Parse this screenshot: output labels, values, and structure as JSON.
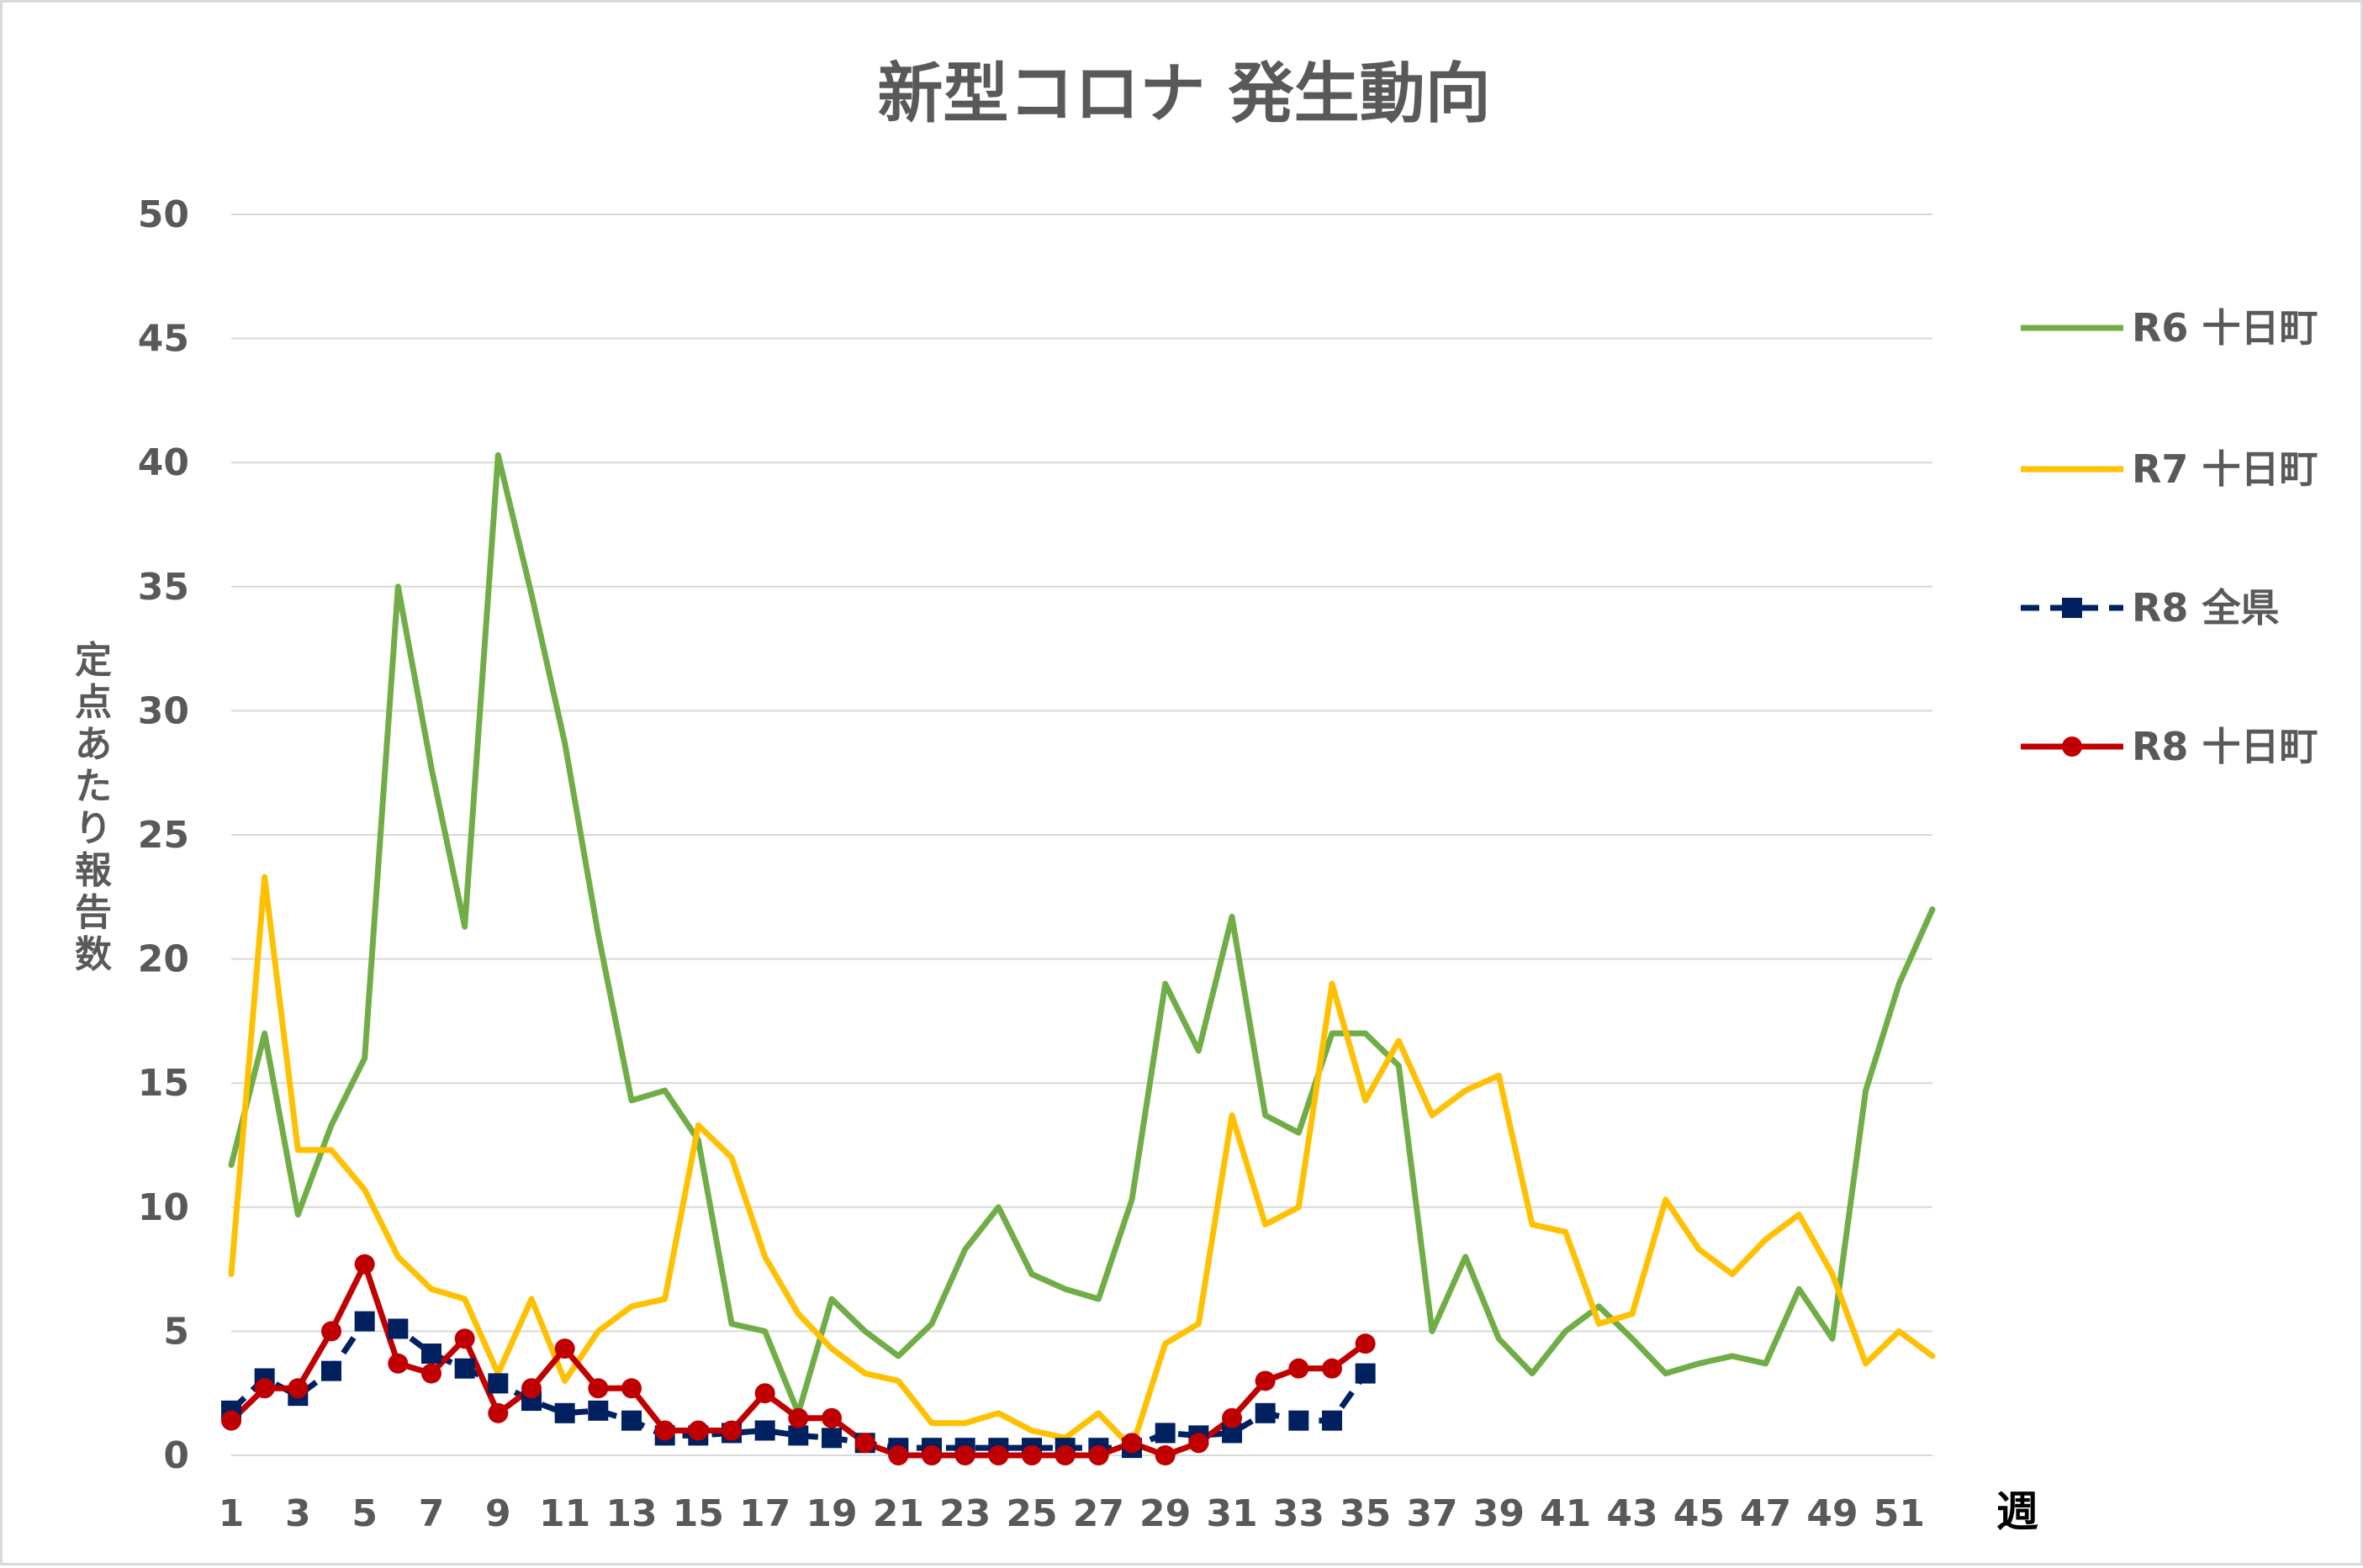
{
  "chart_data": {
    "type": "line",
    "title": "新型コロナ 発生動向",
    "ylabel": "定点あたり報告数",
    "xlabel": "週",
    "ylim": [
      0,
      50
    ],
    "yticks": [
      0,
      5,
      10,
      15,
      20,
      25,
      30,
      35,
      40,
      45,
      50
    ],
    "xlim": [
      1,
      52
    ],
    "xticks": [
      1,
      3,
      5,
      7,
      9,
      11,
      13,
      15,
      17,
      19,
      21,
      23,
      25,
      27,
      29,
      31,
      33,
      35,
      37,
      39,
      41,
      43,
      45,
      47,
      49,
      51
    ],
    "grid": "horizontal",
    "legend_position": "right",
    "series": [
      {
        "name": "R6 十日町",
        "color": "#70ad47",
        "style": "solid",
        "marker": "none",
        "x": [
          1,
          2,
          3,
          4,
          5,
          6,
          7,
          8,
          9,
          10,
          11,
          12,
          13,
          14,
          15,
          16,
          17,
          18,
          19,
          20,
          21,
          22,
          23,
          24,
          25,
          26,
          27,
          28,
          29,
          30,
          31,
          32,
          33,
          34,
          35,
          36,
          37,
          38,
          39,
          40,
          41,
          42,
          43,
          44,
          45,
          46,
          47,
          48,
          49,
          50,
          51,
          52
        ],
        "values": [
          11.7,
          17,
          9.7,
          13.3,
          16,
          35,
          27.7,
          21.3,
          40.3,
          34.7,
          28.7,
          21,
          14.3,
          14.7,
          12.7,
          5.3,
          5,
          1.7,
          6.3,
          5,
          4,
          5.3,
          8.3,
          10,
          7.3,
          6.7,
          6.3,
          10.3,
          19,
          16.3,
          21.7,
          13.7,
          13,
          17,
          17,
          15.7,
          5,
          8,
          4.7,
          3.3,
          5,
          6,
          4.7,
          3.3,
          3.7,
          4,
          3.7,
          6.7,
          4.7,
          14.7,
          19,
          22
        ]
      },
      {
        "name": "R7 十日町",
        "color": "#ffc000",
        "style": "solid",
        "marker": "none",
        "x": [
          1,
          2,
          3,
          4,
          5,
          6,
          7,
          8,
          9,
          10,
          11,
          12,
          13,
          14,
          15,
          16,
          17,
          18,
          19,
          20,
          21,
          22,
          23,
          24,
          25,
          26,
          27,
          28,
          29,
          30,
          31,
          32,
          33,
          34,
          35,
          36,
          37,
          38,
          39,
          40,
          41,
          42,
          43,
          44,
          45,
          46,
          47,
          48,
          49,
          50,
          51,
          52
        ],
        "values": [
          7.3,
          23.3,
          12.3,
          12.3,
          10.7,
          8,
          6.7,
          6.3,
          3.3,
          6.3,
          3,
          5,
          6,
          6.3,
          13.3,
          12,
          8,
          5.7,
          4.3,
          3.3,
          3,
          1.3,
          1.3,
          1.7,
          1,
          0.7,
          1.7,
          0.3,
          4.5,
          5.3,
          13.7,
          9.3,
          10,
          19,
          14.3,
          16.7,
          13.7,
          14.7,
          15.3,
          9.3,
          9,
          5.3,
          5.7,
          10.3,
          8.3,
          7.3,
          8.7,
          9.7,
          7.3,
          3.7,
          5,
          4
        ]
      },
      {
        "name": "R8 全県",
        "color": "#002060",
        "style": "dashed",
        "marker": "square",
        "x": [
          1,
          2,
          3,
          4,
          5,
          6,
          7,
          8,
          9,
          10,
          11,
          12,
          13,
          14,
          15,
          16,
          17,
          18,
          19,
          20,
          21,
          22,
          23,
          24,
          25,
          26,
          27,
          28,
          29,
          30,
          31,
          32,
          33,
          34,
          35
        ],
        "values": [
          1.8,
          3.1,
          2.4,
          3.4,
          5.4,
          5.1,
          4.1,
          3.5,
          2.9,
          2.2,
          1.7,
          1.8,
          1.4,
          0.8,
          0.8,
          0.9,
          1,
          0.8,
          0.7,
          0.5,
          0.3,
          0.3,
          0.3,
          0.3,
          0.3,
          0.3,
          0.3,
          0.3,
          0.9,
          0.8,
          0.9,
          1.7,
          1.4,
          1.4,
          3.3
        ]
      },
      {
        "name": "R8 十日町",
        "color": "#c00000",
        "style": "solid",
        "marker": "circle",
        "x": [
          1,
          2,
          3,
          4,
          5,
          6,
          7,
          8,
          9,
          10,
          11,
          12,
          13,
          14,
          15,
          16,
          17,
          18,
          19,
          20,
          21,
          22,
          23,
          24,
          25,
          26,
          27,
          28,
          29,
          30,
          31,
          32,
          33,
          34,
          35
        ],
        "values": [
          1.4,
          2.7,
          2.7,
          5,
          7.7,
          3.7,
          3.3,
          4.7,
          1.7,
          2.7,
          4.3,
          2.7,
          2.7,
          1,
          1,
          1,
          2.5,
          1.5,
          1.5,
          0.5,
          0,
          0,
          0,
          0,
          0,
          0,
          0,
          0.5,
          0,
          0.5,
          1.5,
          3,
          3.5,
          3.5,
          4.5
        ]
      }
    ]
  }
}
